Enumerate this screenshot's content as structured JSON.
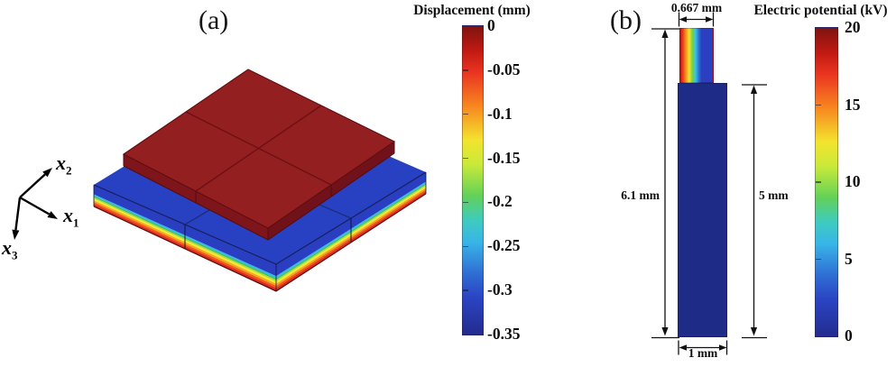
{
  "figure": {
    "panel_a": {
      "label": "(a)",
      "axes": [
        {
          "base": "x",
          "sub": "1"
        },
        {
          "base": "x",
          "sub": "2"
        },
        {
          "base": "x",
          "sub": "3"
        }
      ],
      "colorbar": {
        "title": "Displacement (mm)",
        "ticks": [
          "0",
          "-0.05",
          "-0.1",
          "-0.15",
          "-0.2",
          "-0.25",
          "-0.3",
          "-0.35"
        ]
      }
    },
    "panel_b": {
      "label": "(b)",
      "dimensions": {
        "top": "0.667 mm",
        "left": "6.1 mm",
        "right": "5 mm",
        "bottom": "1 mm"
      },
      "colorbar": {
        "title": "Electric potential (kV)",
        "ticks": [
          "20",
          "15",
          "10",
          "5",
          "0"
        ]
      }
    }
  },
  "colors": {
    "substrate_top": "#2840c2",
    "substrate_edge": "#1b2a6e",
    "plate_red_top": "#941f21",
    "plate_red_side_left": "#7d151b",
    "plate_red_side_right": "#71121a",
    "plate_red_mesh": "#6b1013",
    "column_navy": "#1f2c87",
    "jet_stops": [
      [
        0,
        "#7f1310"
      ],
      [
        8,
        "#c01a12"
      ],
      [
        15,
        "#ea3420"
      ],
      [
        26,
        "#f8871f"
      ],
      [
        37,
        "#f3e42e"
      ],
      [
        45,
        "#c8e93a"
      ],
      [
        55,
        "#62d158"
      ],
      [
        63,
        "#3ecbc0"
      ],
      [
        70,
        "#38b5e8"
      ],
      [
        80,
        "#2f6fd4"
      ],
      [
        88,
        "#2b44c4"
      ],
      [
        100,
        "#232c8e"
      ]
    ],
    "substrate_bands": [
      [
        0,
        0.44,
        "#2a3ec2"
      ],
      [
        0.44,
        0.52,
        "#33b9e6"
      ],
      [
        0.52,
        0.58,
        "#3fbf56"
      ],
      [
        0.58,
        0.64,
        "#a8dd38"
      ],
      [
        0.64,
        0.72,
        "#f4ea2c"
      ],
      [
        0.72,
        0.8,
        "#f9a51e"
      ],
      [
        0.8,
        0.88,
        "#ef5c19"
      ],
      [
        0.88,
        0.95,
        "#e22715"
      ],
      [
        0.95,
        1,
        "#ad1410"
      ]
    ],
    "potential_stops": [
      [
        0,
        "#c21a10"
      ],
      [
        7,
        "#e93a17"
      ],
      [
        17,
        "#f6901c"
      ],
      [
        27,
        "#efe72d"
      ],
      [
        37,
        "#79d147"
      ],
      [
        47,
        "#36c3e7"
      ],
      [
        57,
        "#2e6ed2"
      ],
      [
        65,
        "#2b3fc0"
      ],
      [
        100,
        "#2b3fc0"
      ]
    ]
  },
  "chart_data": [
    {
      "type": "heatmap",
      "panel": "(a)",
      "title": "Displacement (mm)",
      "description": "Isometric 3D FEM result: a 2x2-meshed square actuator plate (uniform dark red, displacement ~0 mm) sitting on a larger square substrate plate; substrate top face at -0.35 mm (blue) and side faces grading through cyan/green/yellow/orange to 0 mm (red) at the bottom",
      "colorbar": {
        "label": "Displacement (mm)",
        "max": 0,
        "min": -0.35,
        "tick_values": [
          0,
          -0.05,
          -0.1,
          -0.15,
          -0.2,
          -0.25,
          -0.3,
          -0.35
        ],
        "colormap": "jet (0 = dark red at top, -0.35 = dark blue at bottom)",
        "legend_position": "right of plot"
      },
      "axes_triad": [
        "x1",
        "x2",
        "x3"
      ]
    },
    {
      "type": "heatmap",
      "panel": "(b)",
      "title": "Electric potential (kV)",
      "description": "2D cross-section: top block 0.667 mm wide x 1.1 mm tall with potential graded from 20 kV (red, left) to 0 kV (blue, right); lower column 1 mm wide x 5 mm tall at 0 kV (dark blue); total height 6.1 mm",
      "colorbar": {
        "label": "Electric potential (kV)",
        "max": 20,
        "min": 0,
        "tick_values": [
          20,
          15,
          10,
          5,
          0
        ],
        "colormap": "jet (20 = dark red at top, 0 = dark blue at bottom)",
        "legend_position": "right of plot"
      },
      "dimensions_mm": {
        "top_width": 0.667,
        "total_height": 6.1,
        "column_height": 5,
        "column_width": 1
      }
    }
  ]
}
